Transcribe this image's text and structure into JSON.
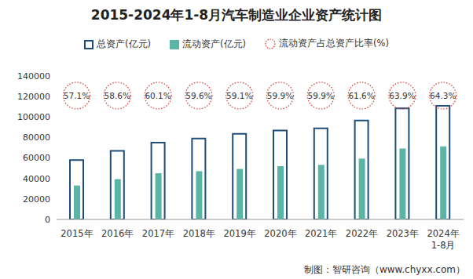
{
  "chart_data": {
    "type": "bar",
    "title": "2015-2024年1-8月汽车制造业企业资产统计图",
    "categories": [
      "2015年",
      "2016年",
      "2017年",
      "2018年",
      "2019年",
      "2020年",
      "2021年",
      "2022年",
      "2023年",
      "2024年1-8月"
    ],
    "series": [
      {
        "name": "总资产(亿元)",
        "type": "bar",
        "marker": "hollow",
        "color": "#1f4e79",
        "values": [
          58000,
          67000,
          75000,
          79000,
          83500,
          86800,
          89000,
          96500,
          108500,
          111000
        ]
      },
      {
        "name": "流动资产(亿元)",
        "type": "bar",
        "color": "#5bb5a6",
        "values": [
          33100,
          39300,
          45100,
          47100,
          49300,
          52000,
          53300,
          59400,
          69300,
          71400
        ]
      },
      {
        "name": "流动资产占总资产比率(%)",
        "type": "label",
        "marker": "circle",
        "line_style": "dotted",
        "color": "#e03c31",
        "data_labels": true,
        "values": [
          57.1,
          58.6,
          60.1,
          59.6,
          59.1,
          59.9,
          59.9,
          61.6,
          63.9,
          64.3
        ],
        "value_labels": [
          "57.1%",
          "58.6%",
          "60.1%",
          "59.6%",
          "59.1%",
          "59.9%",
          "59.9%",
          "61.6%",
          "63.9%",
          "64.3%"
        ]
      }
    ],
    "ylim": [
      0,
      140000
    ],
    "yticks": [
      0,
      20000,
      40000,
      60000,
      80000,
      100000,
      120000,
      140000
    ],
    "grid": false,
    "legend": "top",
    "source": "制图：智研咨询（www.chyxx.com）"
  }
}
